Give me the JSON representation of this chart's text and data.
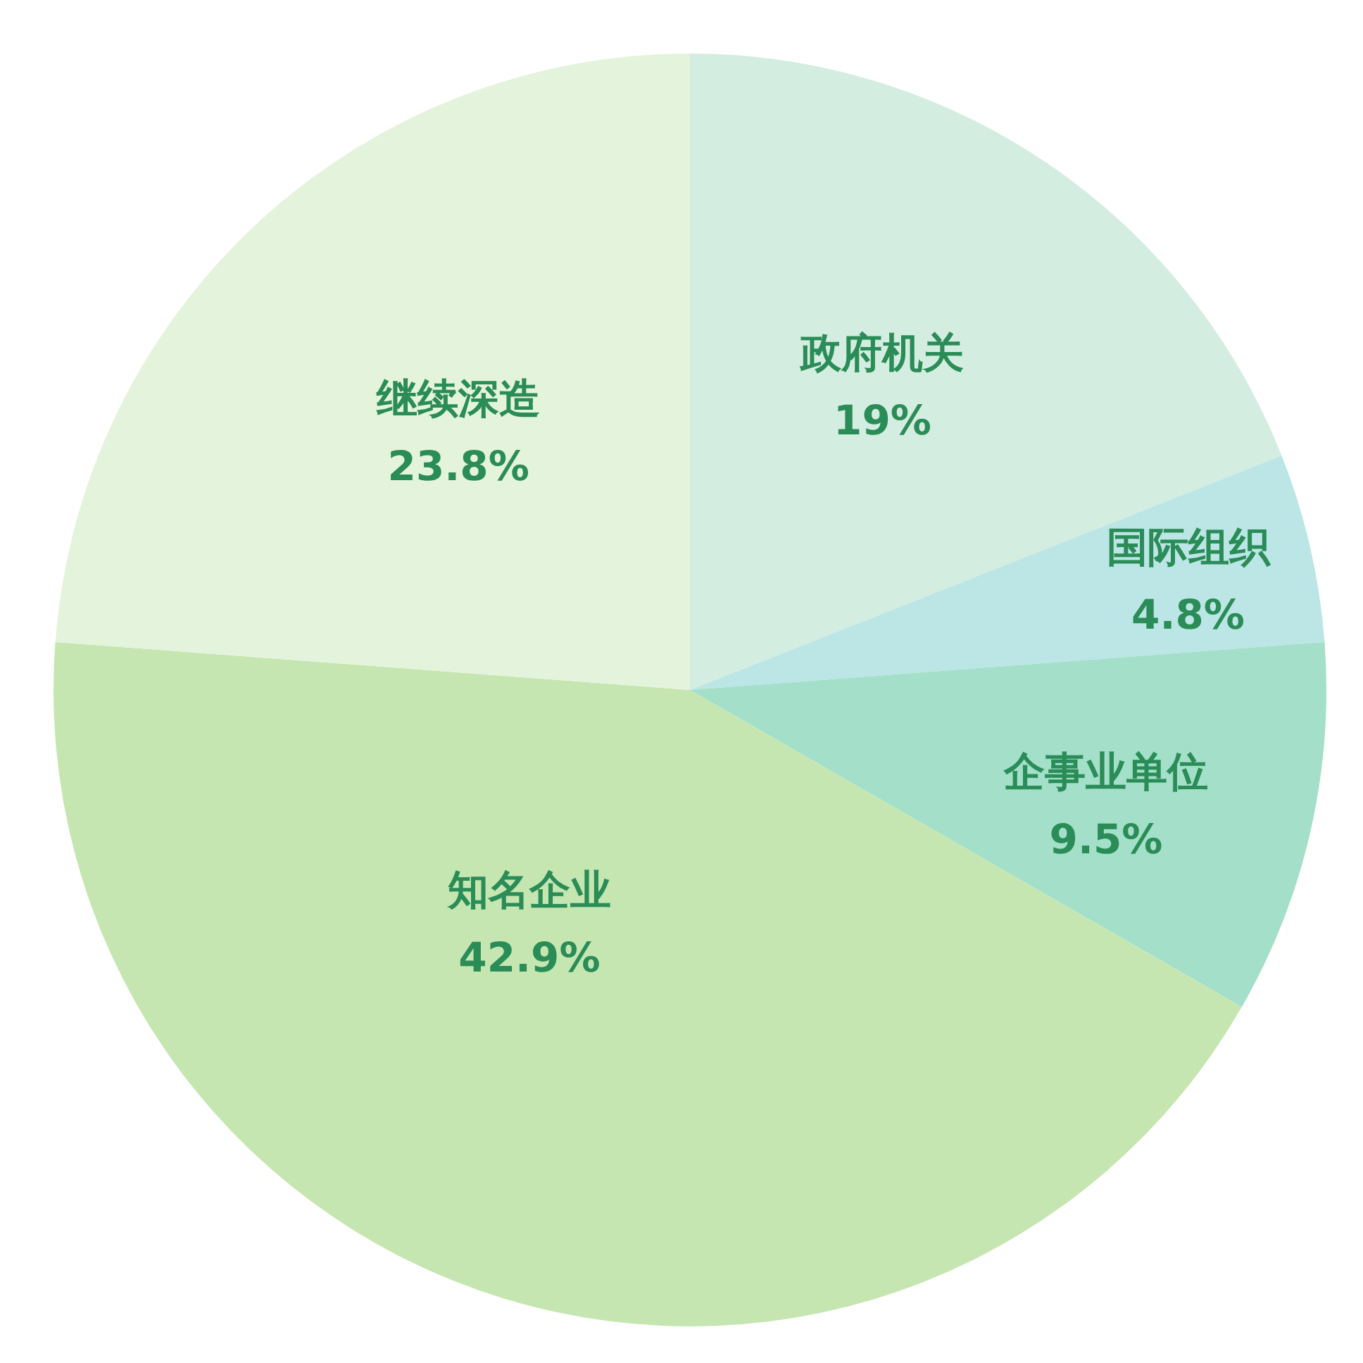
{
  "chart_data": {
    "type": "pie",
    "categories": [
      "政府机关",
      "国际组织",
      "企事业单位",
      "知名企业",
      "继续深造"
    ],
    "values": [
      19,
      4.8,
      9.5,
      42.9,
      23.8
    ],
    "colors": [
      "#d4ede1",
      "#bce5e6",
      "#a3dfc9",
      "#c6e6b1",
      "#e4f3dc"
    ],
    "value_labels": [
      "19%",
      "4.8%",
      "9.5%",
      "42.9%",
      "23.8%"
    ],
    "legend": false
  }
}
